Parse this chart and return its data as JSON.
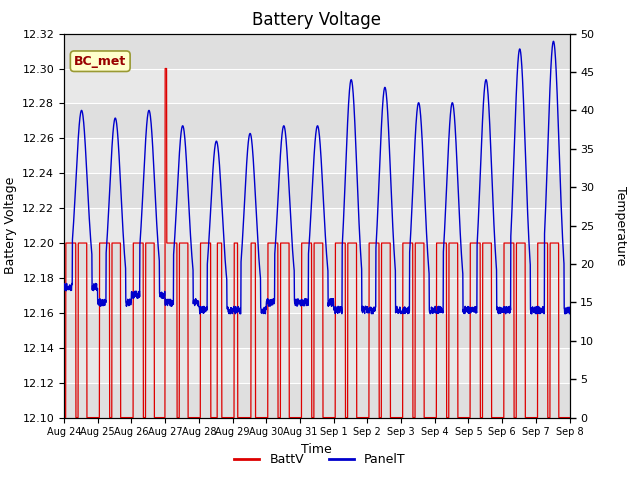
{
  "title": "Battery Voltage",
  "xlabel": "Time",
  "ylabel_left": "Battery Voltage",
  "ylabel_right": "Temperature",
  "annotation_text": "BC_met",
  "ylim_left": [
    12.1,
    12.32
  ],
  "ylim_right": [
    0,
    50
  ],
  "yticks_left": [
    12.1,
    12.12,
    12.14,
    12.16,
    12.18,
    12.2,
    12.22,
    12.24,
    12.26,
    12.28,
    12.3,
    12.32
  ],
  "yticks_right": [
    0,
    5,
    10,
    15,
    20,
    25,
    30,
    35,
    40,
    45,
    50
  ],
  "x_tick_labels": [
    "Aug 24",
    "Aug 25",
    "Aug 26",
    "Aug 27",
    "Aug 28",
    "Aug 29",
    "Aug 30",
    "Aug 31",
    "Sep 1",
    "Sep 2",
    "Sep 3",
    "Sep 4",
    "Sep 5",
    "Sep 6",
    "Sep 7",
    "Sep 8"
  ],
  "background_color": "#ffffff",
  "plot_bg_color": "#e8e8e8",
  "grid_color": "#ffffff",
  "batt_color": "#dd0000",
  "panel_color": "#0000cc",
  "legend_batt": "BattV",
  "legend_panel": "PanelT",
  "title_fontsize": 12,
  "axis_label_fontsize": 9,
  "tick_fontsize": 8,
  "annotation_color": "#990000",
  "annotation_bg": "#ffffcc",
  "annotation_edge": "#999933"
}
